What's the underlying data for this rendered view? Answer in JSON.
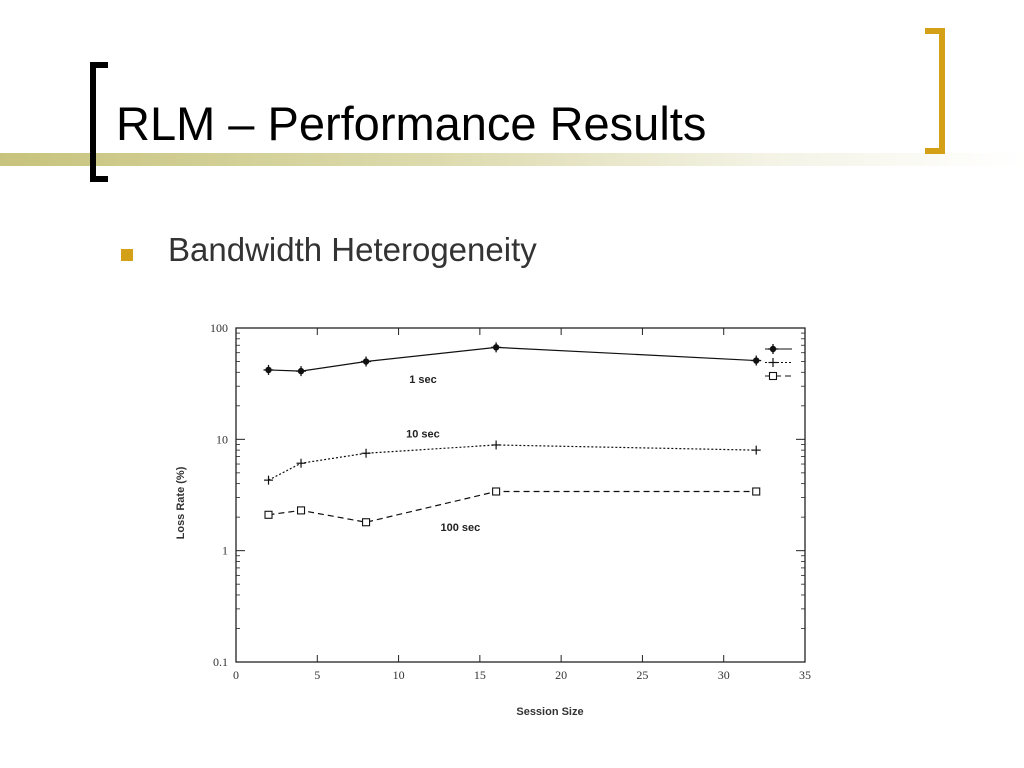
{
  "slide": {
    "title": "RLM – Performance Results",
    "bullet": "Bandwidth Heterogeneity",
    "colors": {
      "accent_gold": "#d4a017",
      "bracket_black": "#000000",
      "band_olive": "#c4c076"
    }
  },
  "chart_data": {
    "type": "line",
    "xlabel": "Session Size",
    "ylabel": "Loss Rate (%)",
    "xlim": [
      0,
      35
    ],
    "ylim": [
      0.1,
      100
    ],
    "yscale": "log",
    "x_ticks": [
      0,
      5,
      10,
      15,
      20,
      25,
      30,
      35
    ],
    "y_ticks": [
      0.1,
      1,
      10,
      100
    ],
    "x_tick_labels": [
      "0",
      "5",
      "10",
      "15",
      "20",
      "25",
      "30",
      "35"
    ],
    "y_tick_labels": [
      "0.1",
      "1",
      "10",
      "100"
    ],
    "legend_position": "top-right",
    "series": [
      {
        "name": "1 sec",
        "marker": "filled-circle",
        "line": "solid",
        "x": [
          2,
          4,
          8,
          16,
          32
        ],
        "y": [
          42,
          41,
          50,
          67,
          51
        ]
      },
      {
        "name": "10 sec",
        "marker": "plus",
        "line": "dotted",
        "x": [
          2,
          4,
          8,
          16,
          32
        ],
        "y": [
          4.3,
          6.1,
          7.5,
          8.9,
          8.0
        ]
      },
      {
        "name": "100 sec",
        "marker": "open-square",
        "line": "dashed",
        "x": [
          2,
          4,
          8,
          16,
          32
        ],
        "y": [
          2.1,
          2.3,
          1.8,
          3.4,
          3.4
        ]
      }
    ],
    "annotations": [
      {
        "series": 0,
        "text": "1 sec",
        "x": 11.5,
        "y": 32
      },
      {
        "series": 1,
        "text": "10 sec",
        "x": 11.5,
        "y": 10.4
      },
      {
        "series": 2,
        "text": "100 sec",
        "x": 13.8,
        "y": 1.5
      }
    ]
  }
}
